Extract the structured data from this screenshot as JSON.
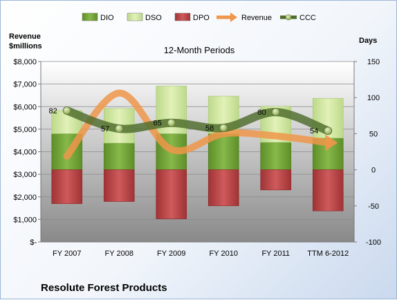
{
  "company_name": "Resolute Forest Products",
  "chart_data": {
    "type": "bar",
    "title": "12-Month Periods",
    "left_axis_label": "Revenue\n$millions",
    "right_axis_label": "Days",
    "categories": [
      "FY 2007",
      "FY 2008",
      "FY 2009",
      "FY 2010",
      "FY 2011",
      "TTM 6-2012"
    ],
    "left_axis": {
      "min": 0,
      "max": 8000,
      "step": 1000,
      "tick_labels": [
        "$-",
        "$1,000",
        "$2,000",
        "$3,000",
        "$4,000",
        "$5,000",
        "$6,000",
        "$7,000",
        "$8,000"
      ]
    },
    "right_axis": {
      "min": -100,
      "max": 150,
      "step": 50,
      "tick_labels": [
        "-100",
        "-50",
        "0",
        "50",
        "100",
        "150"
      ]
    },
    "legend": [
      {
        "name": "DIO",
        "kind": "bar",
        "color": "#77a83a"
      },
      {
        "name": "DSO",
        "kind": "bar",
        "color": "#d5e9a3"
      },
      {
        "name": "DPO",
        "kind": "bar",
        "color": "#c0484a"
      },
      {
        "name": "Revenue",
        "kind": "arrow",
        "color": "#f0964a"
      },
      {
        "name": "CCC",
        "kind": "line-marker",
        "color": "#4e6b2c"
      }
    ],
    "legend_position": "top",
    "series": [
      {
        "name": "DIO",
        "axis": "right",
        "values": [
          50,
          37,
          50,
          50,
          38,
          44
        ]
      },
      {
        "name": "DSO",
        "axis": "right",
        "values": [
          32,
          48,
          66,
          52,
          50,
          55
        ]
      },
      {
        "name": "DPO",
        "axis": "right",
        "values": [
          -47,
          -44,
          -68,
          -50,
          -28,
          -57
        ]
      },
      {
        "name": "Revenue",
        "axis": "left",
        "values": [
          3800,
          6600,
          4100,
          4800,
          4700,
          4400
        ]
      },
      {
        "name": "CCC",
        "axis": "right",
        "values": [
          82,
          57,
          65,
          58,
          80,
          54
        ],
        "data_labels": [
          "82",
          "57",
          "65",
          "58",
          "80",
          "54"
        ]
      }
    ]
  }
}
